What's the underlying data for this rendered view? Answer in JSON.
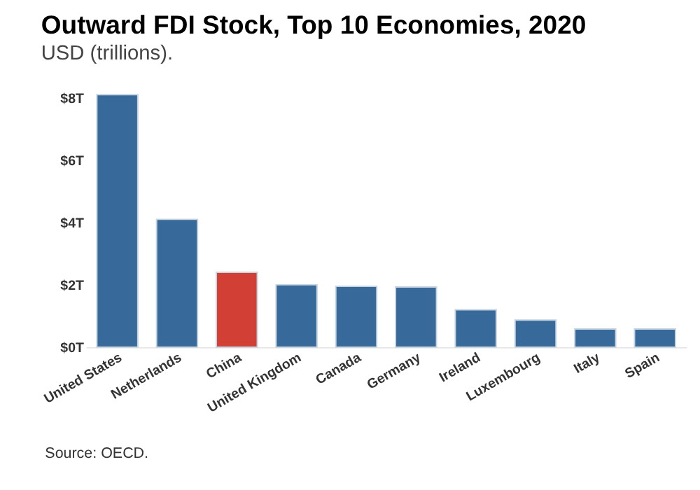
{
  "chart_data": {
    "type": "bar",
    "title": "Outward FDI Stock, Top 10 Economies, 2020",
    "subtitle": "USD (trillions).",
    "annotations": [
      "Source: OECD."
    ],
    "categories": [
      "United States",
      "Netherlands",
      "China",
      "United Kingdom",
      "Canada",
      "Germany",
      "Ireland",
      "Luxembourg",
      "Italy",
      "Spain"
    ],
    "values": [
      8.1,
      4.1,
      2.4,
      2.0,
      1.95,
      1.93,
      1.2,
      0.87,
      0.58,
      0.58
    ],
    "colors": [
      "#376a9a",
      "#376a9a",
      "#d13f35",
      "#376a9a",
      "#376a9a",
      "#376a9a",
      "#376a9a",
      "#376a9a",
      "#376a9a",
      "#376a9a"
    ],
    "ylim": [
      0,
      8.1
    ],
    "yticks": [
      {
        "value": 0,
        "label": "$0T"
      },
      {
        "value": 2,
        "label": "$2T"
      },
      {
        "value": 4,
        "label": "$4T"
      },
      {
        "value": 6,
        "label": "$6T"
      },
      {
        "value": 8,
        "label": "$8T"
      }
    ],
    "grid": false
  }
}
